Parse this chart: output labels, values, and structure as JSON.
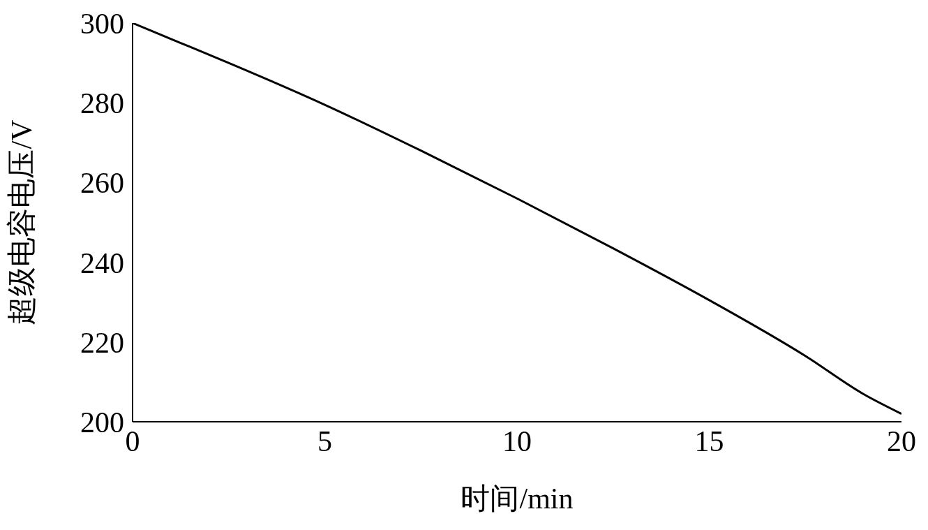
{
  "chart_data": {
    "type": "line",
    "xlabel": "时间/min",
    "ylabel": "超级电容电压/V",
    "x": [
      0,
      1,
      2.5,
      5,
      7.5,
      10,
      12.5,
      15,
      17.5,
      19,
      20
    ],
    "series": [
      {
        "color": "#000000",
        "values": [
          300,
          296,
          290,
          279.5,
          268,
          256,
          243.5,
          230.5,
          216.5,
          207,
          202
        ]
      }
    ],
    "xlim": [
      0,
      20
    ],
    "xticks": [
      0,
      5,
      10,
      15,
      20
    ],
    "ylim": [
      200,
      300
    ],
    "yticks": [
      200,
      220,
      240,
      260,
      280,
      300
    ],
    "grid": false,
    "marker": "none",
    "line_style": "solid"
  }
}
